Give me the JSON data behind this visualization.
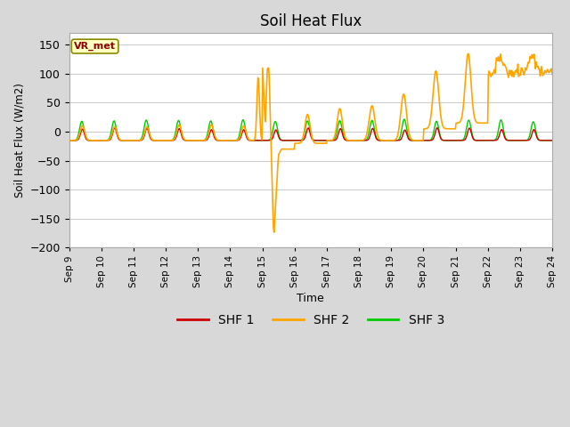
{
  "title": "Soil Heat Flux",
  "ylabel": "Soil Heat Flux (W/m2)",
  "xlabel": "Time",
  "ylim": [
    -200,
    170
  ],
  "yticks": [
    -200,
    -150,
    -100,
    -50,
    0,
    50,
    100,
    150
  ],
  "fig_bg_color": "#d8d8d8",
  "plot_bg": "#ffffff",
  "grid_color": "#cccccc",
  "shf1_color": "#cc0000",
  "shf2_color": "#ffa500",
  "shf3_color": "#00cc00",
  "legend_label1": "SHF 1",
  "legend_label2": "SHF 2",
  "legend_label3": "SHF 3",
  "annotation_text": "VR_met",
  "n_days": 15,
  "start_day": 9,
  "end_day": 24
}
